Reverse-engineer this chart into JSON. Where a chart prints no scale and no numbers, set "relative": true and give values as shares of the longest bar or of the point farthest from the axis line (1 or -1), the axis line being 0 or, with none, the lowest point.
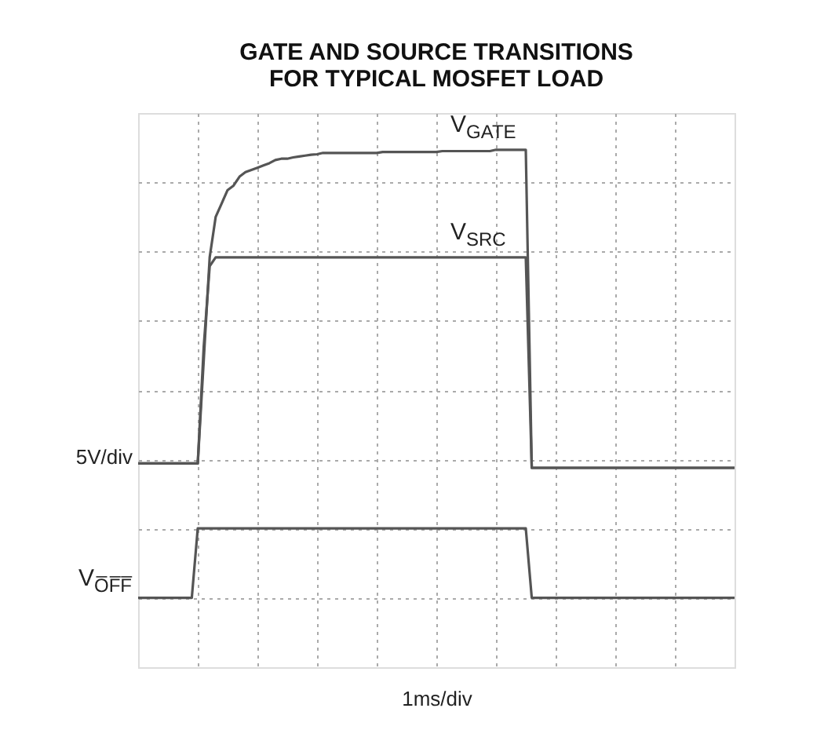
{
  "chart_data": {
    "type": "line",
    "title": "GATE AND SOURCE TRANSITIONS\nFOR TYPICAL MOSFET LOAD",
    "xlabel": "1ms/div",
    "ylabel": "5V/div",
    "relative": true,
    "categories": [
      null,
      null,
      null,
      null,
      null,
      null,
      null,
      null,
      null,
      null,
      null,
      null,
      null,
      null,
      null,
      null,
      null,
      null,
      null,
      null,
      null,
      null,
      null,
      null,
      null,
      null,
      null,
      null,
      null,
      null,
      null,
      null,
      null,
      null,
      null,
      null,
      null,
      null,
      null,
      null,
      null,
      null,
      null,
      null,
      null,
      null,
      null,
      null,
      null,
      null,
      null,
      null,
      null,
      null,
      null,
      null,
      null,
      null,
      null,
      null,
      null,
      null,
      null,
      null,
      null,
      null,
      null,
      null,
      null,
      null,
      null,
      null,
      null,
      null,
      null,
      null,
      null,
      null,
      null,
      null,
      null,
      null,
      null,
      null,
      null,
      null,
      null,
      null,
      null,
      null,
      null,
      null,
      null,
      null,
      null,
      null,
      null,
      null,
      null,
      null,
      null
    ],
    "grid": true,
    "marker": "none",
    "line_style": "solid",
    "series": [
      {
        "name": "V$_{GATE}$",
        "color": "#555555",
        "values": [
          0.3,
          0.3,
          0.3,
          0.3,
          0.3,
          0.3,
          0.3,
          0.3,
          0.3,
          0.3,
          0.3,
          0.53,
          0.76,
          0.85,
          0.88,
          0.91,
          0.92,
          0.94,
          0.95,
          0.955,
          0.96,
          0.965,
          0.97,
          0.977,
          0.98,
          0.98,
          0.983,
          0.985,
          0.987,
          0.989,
          0.99,
          0.993,
          0.993,
          0.993,
          0.993,
          0.993,
          0.993,
          0.993,
          0.993,
          0.993,
          0.993,
          0.995,
          0.995,
          0.995,
          0.995,
          0.995,
          0.995,
          0.995,
          0.995,
          0.995,
          0.995,
          0.997,
          0.997,
          0.997,
          0.997,
          0.997,
          0.997,
          0.997,
          0.997,
          0.997,
          1,
          1,
          1,
          1,
          1,
          1,
          0.29,
          0.29,
          0.29,
          0.29,
          0.29,
          0.29,
          0.29,
          0.29,
          0.29,
          0.29,
          0.29,
          0.29,
          0.29,
          0.29,
          0.29,
          0.29,
          0.29,
          0.29,
          0.29,
          0.29,
          0.29,
          0.29,
          0.29,
          0.29,
          0.29,
          0.29,
          0.29,
          0.29,
          0.29,
          0.29,
          0.29,
          0.29,
          0.29,
          0.29,
          0.29
        ]
      },
      {
        "name": "V$_{SRC}$",
        "color": "#555555",
        "values": [
          0.3,
          0.3,
          0.3,
          0.3,
          0.3,
          0.3,
          0.3,
          0.3,
          0.3,
          0.3,
          0.3,
          0.56,
          0.74,
          0.76,
          0.76,
          0.76,
          0.76,
          0.76,
          0.76,
          0.76,
          0.76,
          0.76,
          0.76,
          0.76,
          0.76,
          0.76,
          0.76,
          0.76,
          0.76,
          0.76,
          0.76,
          0.76,
          0.76,
          0.76,
          0.76,
          0.76,
          0.76,
          0.76,
          0.76,
          0.76,
          0.76,
          0.76,
          0.76,
          0.76,
          0.76,
          0.76,
          0.76,
          0.76,
          0.76,
          0.76,
          0.76,
          0.76,
          0.76,
          0.76,
          0.76,
          0.76,
          0.76,
          0.76,
          0.76,
          0.76,
          0.76,
          0.76,
          0.76,
          0.76,
          0.76,
          0.76,
          0.29,
          0.29,
          0.29,
          0.29,
          0.29,
          0.29,
          0.29,
          0.29,
          0.29,
          0.29,
          0.29,
          0.29,
          0.29,
          0.29,
          0.29,
          0.29,
          0.29,
          0.29,
          0.29,
          0.29,
          0.29,
          0.29,
          0.29,
          0.29,
          0.29,
          0.29,
          0.29,
          0.29,
          0.29,
          0.29,
          0.29,
          0.29,
          0.29,
          0.29,
          0.29
        ]
      },
      {
        "name": "V$_{O̅F̅F̅}$",
        "color": "#555555",
        "values": [
          0,
          0,
          0,
          0,
          0,
          0,
          0,
          0,
          0,
          0,
          0.155,
          0.155,
          0.155,
          0.155,
          0.155,
          0.155,
          0.155,
          0.155,
          0.155,
          0.155,
          0.155,
          0.155,
          0.155,
          0.155,
          0.155,
          0.155,
          0.155,
          0.155,
          0.155,
          0.155,
          0.155,
          0.155,
          0.155,
          0.155,
          0.155,
          0.155,
          0.155,
          0.155,
          0.155,
          0.155,
          0.155,
          0.155,
          0.155,
          0.155,
          0.155,
          0.155,
          0.155,
          0.155,
          0.155,
          0.155,
          0.155,
          0.155,
          0.155,
          0.155,
          0.155,
          0.155,
          0.155,
          0.155,
          0.155,
          0.155,
          0.155,
          0.155,
          0.155,
          0.155,
          0.155,
          0.155,
          0,
          0,
          0,
          0,
          0,
          0,
          0,
          0,
          0,
          0,
          0,
          0,
          0,
          0,
          0,
          0,
          0,
          0,
          0,
          0,
          0,
          0,
          0,
          0,
          0,
          0,
          0,
          0,
          0,
          0,
          0,
          0,
          0,
          0,
          0
        ]
      }
    ]
  }
}
